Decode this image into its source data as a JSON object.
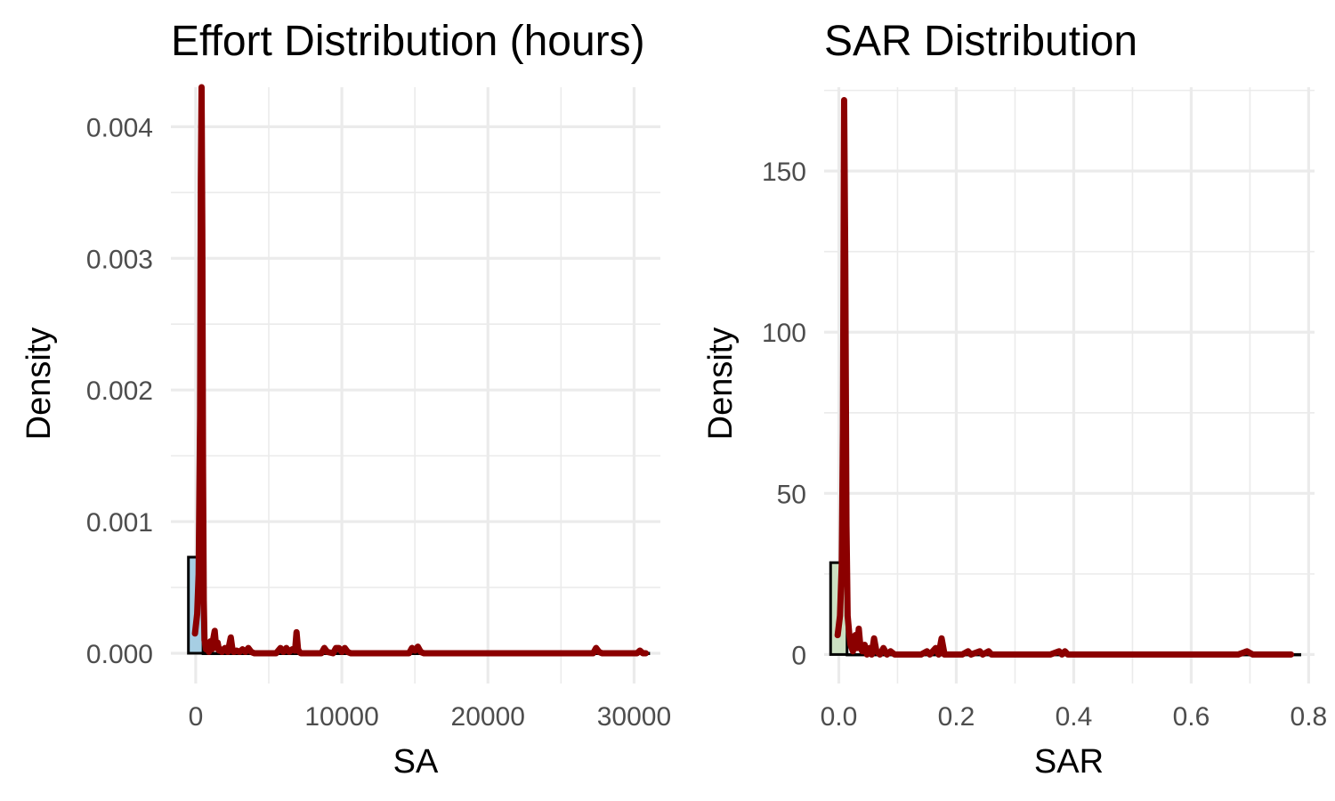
{
  "chart_data": [
    {
      "type": "area",
      "title": "Effort Distribution (hours)",
      "xlabel": "SA",
      "ylabel": "Density",
      "xlim": [
        -1700,
        31800
      ],
      "ylim": [
        -0.00023,
        0.0043
      ],
      "x_ticks": [
        0,
        10000,
        20000,
        30000
      ],
      "x_tick_labels": [
        "0",
        "10000",
        "20000",
        "30000"
      ],
      "y_ticks": [
        0,
        0.001,
        0.002,
        0.003,
        0.004
      ],
      "y_tick_labels": [
        "0.000",
        "0.001",
        "0.002",
        "0.003",
        "0.004"
      ],
      "grid": true,
      "histogram": {
        "fill": "#a6cee3",
        "bins": [
          {
            "x0": -500,
            "x1": 500,
            "density": 0.00073
          },
          {
            "x0": 500,
            "x1": 31000,
            "density": 0
          }
        ]
      },
      "density": {
        "color": "#8b0000",
        "x": [
          -50,
          100,
          200,
          300,
          350,
          400,
          450,
          500,
          550,
          600,
          700,
          800,
          900,
          1000,
          1100,
          1200,
          1300,
          1400,
          1500,
          1600,
          1700,
          1800,
          2000,
          2200,
          2400,
          2500,
          2600,
          2800,
          3000,
          3200,
          3400,
          3600,
          3800,
          4000,
          5500,
          5800,
          6000,
          6200,
          6400,
          6600,
          6800,
          6900,
          7000,
          7100,
          7200,
          7400,
          8000,
          8600,
          8800,
          9000,
          9400,
          9600,
          9800,
          10000,
          10200,
          10400,
          10600,
          11000,
          14600,
          14800,
          15000,
          15200,
          15400,
          15600,
          16000,
          27200,
          27400,
          27600,
          27800,
          30000,
          30200,
          30400,
          30600,
          30800
        ],
        "y": [
          0.00015,
          0.0003,
          0.0006,
          0.0018,
          0.0036,
          0.0043,
          0.0032,
          0.0014,
          0.0004,
          0.0001,
          3e-05,
          6e-05,
          1e-05,
          9e-05,
          3e-05,
          0.00011,
          0.00017,
          4e-05,
          8e-05,
          2e-05,
          3e-05,
          1e-05,
          4e-05,
          1e-05,
          0.00012,
          4e-05,
          1e-05,
          2e-05,
          1e-05,
          3e-05,
          1e-05,
          4e-05,
          1e-05,
          0,
          0,
          4e-05,
          1e-05,
          4e-05,
          1e-05,
          3e-05,
          2e-05,
          0.00016,
          3e-05,
          1e-05,
          0,
          0,
          0,
          0,
          4e-05,
          1e-05,
          0,
          4e-05,
          4e-05,
          1e-05,
          4e-05,
          1e-05,
          0,
          0,
          0,
          4e-05,
          2e-05,
          5e-05,
          1e-05,
          0,
          0,
          0,
          4e-05,
          1e-05,
          0,
          0,
          0,
          2e-05,
          0,
          0
        ]
      }
    },
    {
      "type": "area",
      "title": "SAR Distribution",
      "xlabel": "SAR",
      "ylabel": "Density",
      "xlim": [
        -0.025,
        0.81
      ],
      "ylim": [
        -9,
        176
      ],
      "x_ticks": [
        0,
        0.2,
        0.4,
        0.6,
        0.8
      ],
      "x_tick_labels": [
        "0.0",
        "0.2",
        "0.4",
        "0.6",
        "0.8"
      ],
      "y_ticks": [
        0,
        50,
        100,
        150
      ],
      "y_tick_labels": [
        "0",
        "50",
        "100",
        "150"
      ],
      "grid": true,
      "histogram": {
        "fill": "#cce0c2",
        "bins": [
          {
            "x0": -0.014,
            "x1": 0.014,
            "density": 28.5
          },
          {
            "x0": 0.014,
            "x1": 0.785,
            "density": 0
          }
        ]
      },
      "density": {
        "color": "#8b0000",
        "x": [
          -0.002,
          0.002,
          0.005,
          0.007,
          0.009,
          0.011,
          0.013,
          0.015,
          0.018,
          0.02,
          0.024,
          0.028,
          0.031,
          0.034,
          0.037,
          0.04,
          0.044,
          0.048,
          0.052,
          0.056,
          0.06,
          0.064,
          0.07,
          0.076,
          0.082,
          0.088,
          0.095,
          0.1,
          0.12,
          0.14,
          0.15,
          0.155,
          0.16,
          0.165,
          0.17,
          0.175,
          0.18,
          0.19,
          0.21,
          0.22,
          0.225,
          0.24,
          0.245,
          0.255,
          0.26,
          0.265,
          0.36,
          0.375,
          0.38,
          0.385,
          0.39,
          0.4,
          0.68,
          0.695,
          0.705,
          0.77
        ],
        "y": [
          6,
          12,
          28,
          70,
          172,
          120,
          40,
          12,
          6,
          3,
          1,
          6,
          2,
          8,
          2,
          1,
          3,
          0,
          2,
          0,
          5,
          1,
          0,
          2,
          0,
          1,
          0,
          0,
          0,
          0,
          1,
          0,
          1,
          2,
          0,
          5,
          0,
          0,
          0,
          1,
          0,
          1,
          0,
          1,
          0,
          0,
          0,
          1,
          0,
          1,
          0,
          0,
          0,
          1,
          0,
          0
        ]
      }
    }
  ]
}
